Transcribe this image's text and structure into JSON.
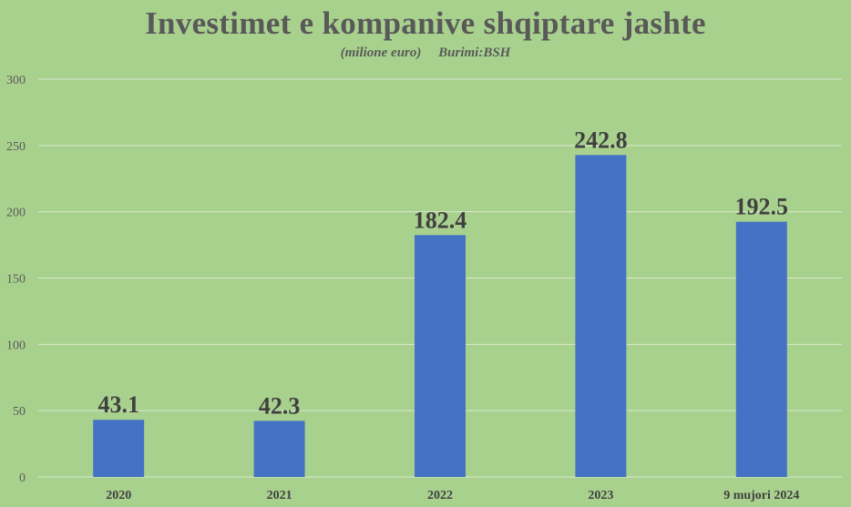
{
  "chart_data": {
    "type": "bar",
    "title": "Investimet e kompanive shqiptare jashte",
    "subtitle": "(milione euro)     Burimi:BSH",
    "categories": [
      "2020",
      "2021",
      "2022",
      "2023",
      "9 mujori 2024"
    ],
    "series": [
      {
        "values": [
          43.1,
          42.3,
          182.4,
          242.8,
          192.5
        ],
        "color": "#4472c4"
      }
    ],
    "ylim": [
      0,
      300
    ],
    "yticks": [
      0,
      50,
      100,
      150,
      200,
      250,
      300
    ],
    "grid": true,
    "legend": "none",
    "background": "#a9d18e",
    "gridline_color": "#d9e8cd",
    "label_color": "#404040"
  }
}
